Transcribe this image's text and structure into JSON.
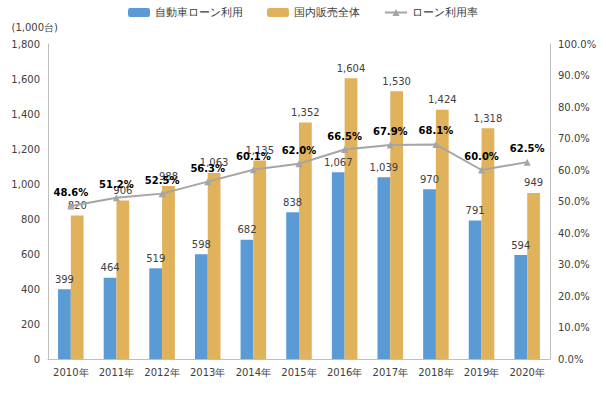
{
  "chart_data": {
    "type": "bar",
    "y_label": "(1,000台)",
    "categories": [
      "2010年",
      "2011年",
      "2012年",
      "2013年",
      "2014年",
      "2015年",
      "2016年",
      "2017年",
      "2018年",
      "2019年",
      "2020年"
    ],
    "series": [
      {
        "name": "自動車ローン利用",
        "type": "bar",
        "color": "#5b9bd5",
        "values": [
          399,
          464,
          519,
          598,
          682,
          838,
          1067,
          1039,
          970,
          791,
          594
        ],
        "value_labels": [
          "399",
          "464",
          "519",
          "598",
          "682",
          "838",
          "1,067",
          "1,039",
          "970",
          "791",
          "594"
        ]
      },
      {
        "name": "国内販売全体",
        "type": "bar",
        "color": "#e0b25c",
        "values": [
          820,
          906,
          988,
          1063,
          1135,
          1352,
          1604,
          1530,
          1424,
          1318,
          949
        ],
        "value_labels": [
          "820",
          "906",
          "988",
          "1,063",
          "1,135",
          "1,352",
          "1,604",
          "1,530",
          "1,424",
          "1,318",
          "949"
        ]
      },
      {
        "name": "ローン利用率",
        "type": "line",
        "axis": "y2",
        "color": "#a5a5a5",
        "marker": "triangle",
        "values": [
          48.6,
          51.2,
          52.5,
          56.3,
          60.1,
          62.0,
          66.5,
          67.9,
          68.1,
          60.0,
          62.5
        ],
        "value_labels": [
          "48.6%",
          "51.2%",
          "52.5%",
          "56.3%",
          "60.1%",
          "62.0%",
          "66.5%",
          "67.9%",
          "68.1%",
          "60.0%",
          "62.5%"
        ]
      }
    ],
    "ylim": [
      0,
      1800
    ],
    "yticks": [
      0,
      200,
      400,
      600,
      800,
      {
        "value": 1000,
        "label": "1,000"
      },
      {
        "value": 1200,
        "label": "1,200"
      },
      {
        "value": 1400,
        "label": "1,400"
      },
      {
        "value": 1600,
        "label": "1,600"
      },
      {
        "value": 1800,
        "label": "1,800"
      }
    ],
    "y2lim": [
      0,
      100
    ],
    "y2ticks": [
      {
        "value": 0,
        "label": "0.0%"
      },
      {
        "value": 10,
        "label": "10.0%"
      },
      {
        "value": 20,
        "label": "20.0%"
      },
      {
        "value": 30,
        "label": "30.0%"
      },
      {
        "value": 40,
        "label": "40.0%"
      },
      {
        "value": 50,
        "label": "50.0%"
      },
      {
        "value": 60,
        "label": "60.0%"
      },
      {
        "value": 70,
        "label": "70.0%"
      },
      {
        "value": 80,
        "label": "80.0%"
      },
      {
        "value": 90,
        "label": "90.0%"
      },
      {
        "value": 100,
        "label": "100.0%"
      }
    ],
    "data_labels": true,
    "legend": "top",
    "grid": false
  }
}
